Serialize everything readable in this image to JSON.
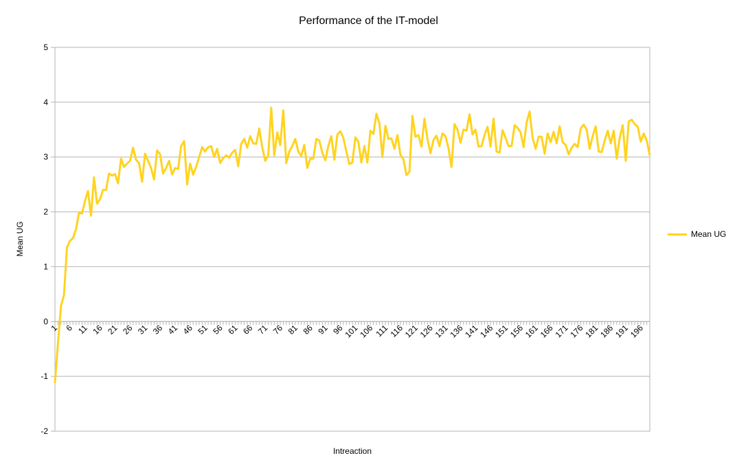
{
  "chart_data": {
    "type": "line",
    "title": "Performance of the IT-model",
    "xlabel": "Intreaction",
    "ylabel": "Mean UG",
    "ylim": [
      -2,
      5
    ],
    "yticks": [
      -2,
      -1,
      0,
      1,
      2,
      3,
      4,
      5
    ],
    "xticks": [
      1,
      6,
      11,
      16,
      21,
      26,
      31,
      36,
      41,
      46,
      51,
      56,
      61,
      66,
      71,
      76,
      81,
      86,
      91,
      96,
      101,
      106,
      111,
      116,
      121,
      126,
      131,
      136,
      141,
      146,
      151,
      156,
      161,
      166,
      171,
      176,
      181,
      186,
      191,
      196
    ],
    "grid": true,
    "legend_position": "right",
    "series": [
      {
        "name": "Mean UG",
        "color": "#ffd320",
        "values": [
          -1.12,
          -0.4,
          0.28,
          0.48,
          1.35,
          1.47,
          1.52,
          1.68,
          1.98,
          1.97,
          2.2,
          2.38,
          1.93,
          2.63,
          2.15,
          2.23,
          2.4,
          2.4,
          2.7,
          2.66,
          2.69,
          2.52,
          2.97,
          2.82,
          2.88,
          2.93,
          3.17,
          2.95,
          2.89,
          2.55,
          3.06,
          2.93,
          2.8,
          2.59,
          3.12,
          3.05,
          2.7,
          2.8,
          2.93,
          2.68,
          2.8,
          2.78,
          3.2,
          3.29,
          2.5,
          2.88,
          2.68,
          2.82,
          3.0,
          3.18,
          3.1,
          3.18,
          3.2,
          3.0,
          3.15,
          2.89,
          2.98,
          3.03,
          2.99,
          3.08,
          3.13,
          2.83,
          3.24,
          3.33,
          3.17,
          3.38,
          3.25,
          3.24,
          3.52,
          3.18,
          2.93,
          3.03,
          3.9,
          3.03,
          3.45,
          3.22,
          3.85,
          2.89,
          3.1,
          3.2,
          3.33,
          3.1,
          3.02,
          3.22,
          2.8,
          2.97,
          2.97,
          3.33,
          3.3,
          3.08,
          2.94,
          3.2,
          3.38,
          2.95,
          3.41,
          3.47,
          3.35,
          3.1,
          2.87,
          2.9,
          3.36,
          3.28,
          2.9,
          3.2,
          2.9,
          3.48,
          3.42,
          3.79,
          3.62,
          3.0,
          3.57,
          3.33,
          3.34,
          3.15,
          3.4,
          3.04,
          2.96,
          2.67,
          2.73,
          3.75,
          3.37,
          3.4,
          3.19,
          3.7,
          3.33,
          3.07,
          3.31,
          3.39,
          3.2,
          3.43,
          3.38,
          3.16,
          2.82,
          3.6,
          3.5,
          3.26,
          3.5,
          3.48,
          3.78,
          3.41,
          3.5,
          3.19,
          3.2,
          3.4,
          3.55,
          3.19,
          3.7,
          3.1,
          3.08,
          3.49,
          3.35,
          3.2,
          3.2,
          3.58,
          3.53,
          3.45,
          3.18,
          3.63,
          3.83,
          3.35,
          3.15,
          3.37,
          3.37,
          3.06,
          3.43,
          3.27,
          3.46,
          3.25,
          3.56,
          3.27,
          3.22,
          3.05,
          3.17,
          3.24,
          3.18,
          3.52,
          3.59,
          3.5,
          3.15,
          3.38,
          3.56,
          3.1,
          3.09,
          3.3,
          3.48,
          3.25,
          3.48,
          2.97,
          3.35,
          3.58,
          2.93,
          3.65,
          3.68,
          3.6,
          3.55,
          3.28,
          3.43,
          3.3,
          3.03
        ]
      }
    ]
  }
}
